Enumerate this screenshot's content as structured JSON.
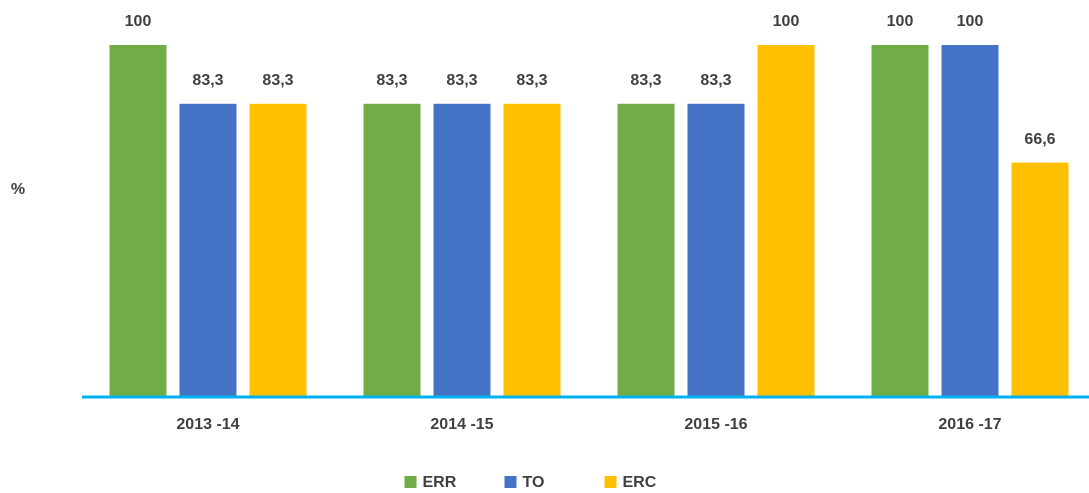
{
  "chart_data": {
    "type": "bar",
    "y_label": "%",
    "categories": [
      "2013 -14",
      "2014 -15",
      "2015 -16",
      "2016 -17"
    ],
    "series": [
      {
        "name": "ERR",
        "color": "#70ad47",
        "values": [
          100,
          83.3,
          83.3,
          100
        ],
        "value_labels": [
          "100",
          "83,3",
          "83,3",
          "100"
        ]
      },
      {
        "name": "TO",
        "color": "#4472c4",
        "values": [
          83.3,
          83.3,
          83.3,
          100
        ],
        "value_labels": [
          "83,3",
          "83,3",
          "83,3",
          "100"
        ]
      },
      {
        "name": "ERC",
        "color": "#ffc000",
        "values": [
          83.3,
          83.3,
          100,
          66.6
        ],
        "value_labels": [
          "83,3",
          "83,3",
          "100",
          "66,6"
        ]
      }
    ],
    "ylim": [
      0,
      100
    ],
    "legend": "bottom"
  }
}
